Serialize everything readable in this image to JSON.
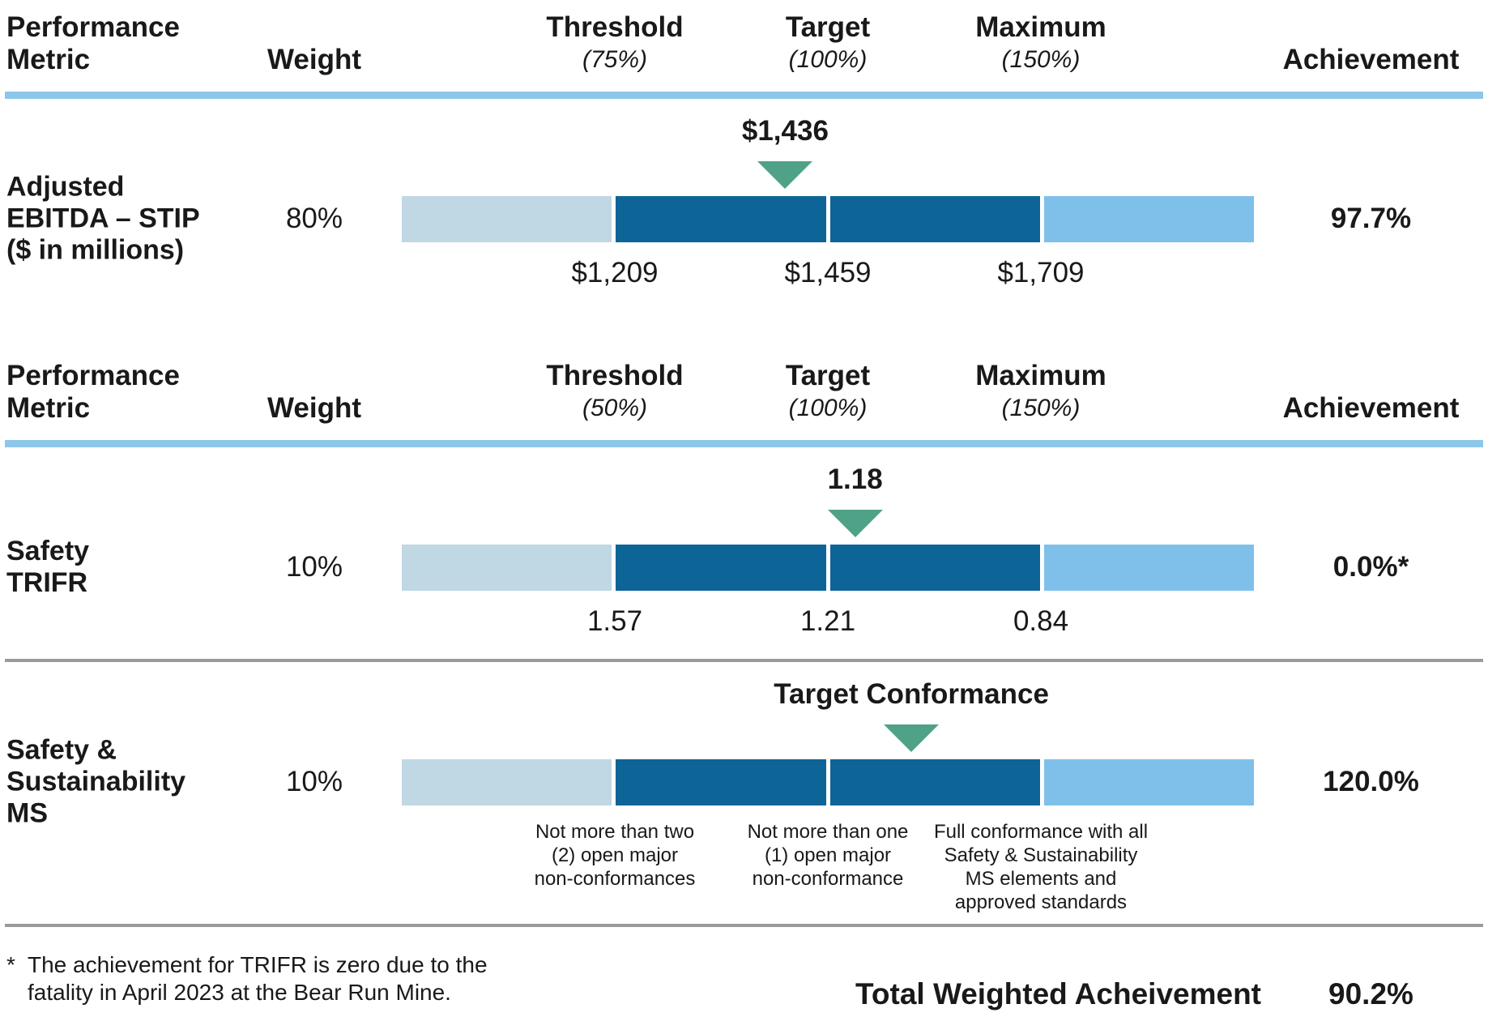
{
  "colors": {
    "text": "#191919",
    "dark_blue": "#0D6497",
    "sky_blue": "#7FC0EA",
    "pale_blue": "#C0D7E4",
    "green": "#4FA287",
    "header_rule": "#8CC6E9",
    "divider": "#9A9A9A"
  },
  "tables": [
    {
      "header": {
        "metric_line1": "Performance",
        "metric_line2": "Metric",
        "weight": "Weight",
        "columns": [
          {
            "title": "Threshold",
            "sub": "(75%)"
          },
          {
            "title": "Target",
            "sub": "(100%)"
          },
          {
            "title": "Maximum",
            "sub": "(150%)"
          }
        ],
        "achievement": "Achievement"
      },
      "rows": [
        {
          "metric_lines": [
            "Adjusted",
            "EBITDA – STIP",
            "($ in millions)"
          ],
          "weight": "80%",
          "marker": {
            "label": "$1,436",
            "left": "45%"
          },
          "ticks": [
            {
              "lines": [
                "$1,209"
              ]
            },
            {
              "lines": [
                "$1,459"
              ]
            },
            {
              "lines": [
                "$1,709"
              ]
            }
          ],
          "achievement": "97.7%"
        }
      ]
    },
    {
      "header": {
        "metric_line1": "Performance",
        "metric_line2": "Metric",
        "weight": "Weight",
        "columns": [
          {
            "title": "Threshold",
            "sub": "(50%)"
          },
          {
            "title": "Target",
            "sub": "(100%)"
          },
          {
            "title": "Maximum",
            "sub": "(150%)"
          }
        ],
        "achievement": "Achievement"
      },
      "rows": [
        {
          "metric_lines": [
            "Safety",
            "TRIFR"
          ],
          "weight": "10%",
          "marker": {
            "label": "1.18",
            "left": "53.2%"
          },
          "ticks": [
            {
              "lines": [
                "1.57"
              ]
            },
            {
              "lines": [
                "1.21"
              ]
            },
            {
              "lines": [
                "0.84"
              ]
            }
          ],
          "achievement": "0.0%*"
        },
        {
          "metric_lines": [
            "Safety &",
            "Sustainability",
            "MS"
          ],
          "weight": "10%",
          "marker": {
            "label": "Target Conformance",
            "left": "59.8%"
          },
          "ticks": [
            {
              "lines": [
                "Not more than two",
                "(2) open major",
                "non-conformances"
              ]
            },
            {
              "lines": [
                "Not more than one",
                "(1) open major",
                "non-conformance"
              ]
            },
            {
              "lines": [
                "Full conformance with all",
                "Safety & Sustainability",
                "MS elements and",
                "approved standards"
              ]
            }
          ],
          "achievement": "120.0%"
        }
      ]
    }
  ],
  "footnote": {
    "symbol": "*",
    "lines": [
      "The achievement for TRIFR is zero due to the",
      "fatality in April 2023 at the Bear Run Mine."
    ]
  },
  "total": {
    "label": "Total Weighted Acheivement",
    "value": "90.2%"
  },
  "chart_data": {
    "type": "bar",
    "subtype": "bullet-scale-table",
    "metrics": [
      {
        "name": "Adjusted EBITDA – STIP ($ in millions)",
        "weight_pct": 80,
        "threshold_payout": "75%",
        "target_payout": "100%",
        "maximum_payout": "150%",
        "threshold": 1209,
        "target": 1459,
        "maximum": 1709,
        "actual": 1436,
        "achievement_pct": 97.7
      },
      {
        "name": "Safety TRIFR",
        "weight_pct": 10,
        "threshold_payout": "50%",
        "target_payout": "100%",
        "maximum_payout": "150%",
        "threshold": 1.57,
        "target": 1.21,
        "maximum": 0.84,
        "actual": 1.18,
        "achievement_pct": 0.0,
        "achievement_note": "0.0%*"
      },
      {
        "name": "Safety & Sustainability MS",
        "weight_pct": 10,
        "threshold": "Not more than two (2) open major non-conformances",
        "target": "Not more than one (1) open major non-conformance",
        "maximum": "Full conformance with all Safety & Sustainability MS elements and approved standards",
        "actual": "Target Conformance",
        "achievement_pct": 120.0
      }
    ],
    "total_weighted_achievement_pct": 90.2,
    "legend_position": "none",
    "grid": false
  }
}
